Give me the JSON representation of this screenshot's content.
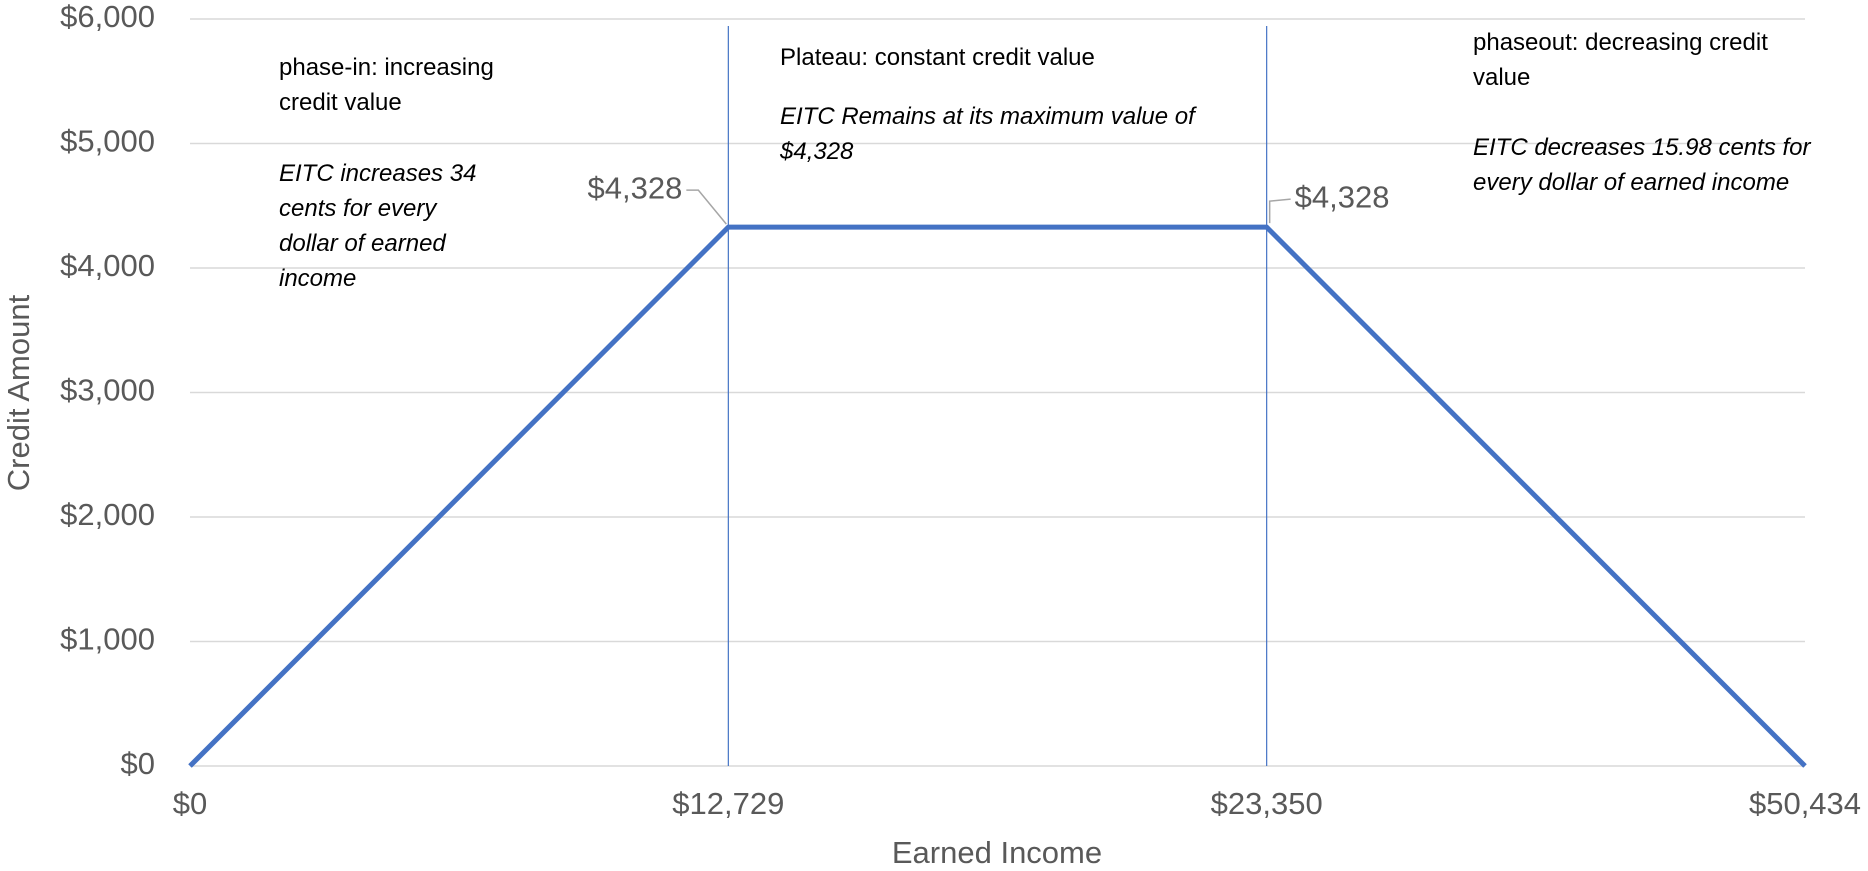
{
  "chart_data": {
    "type": "line",
    "x_label": "Earned Income",
    "y_label": "Credit Amount",
    "categories": [
      "$0",
      "$12,729",
      "$23,350",
      "$50,434"
    ],
    "series": [
      {
        "color": "#4472c4",
        "values": [
          0,
          4328,
          4328,
          0
        ],
        "value_labels": [
          null,
          "$4,328",
          "$4,328",
          null
        ]
      }
    ],
    "ylim": [
      0,
      6000
    ],
    "yticks": [
      {
        "value": 0,
        "label": "$0"
      },
      {
        "value": 1000,
        "label": "$1,000"
      },
      {
        "value": 2000,
        "label": "$2,000"
      },
      {
        "value": 3000,
        "label": "$3,000"
      },
      {
        "value": 4000,
        "label": "$4,000"
      },
      {
        "value": 5000,
        "label": "$5,000"
      },
      {
        "value": 6000,
        "label": "$6,000"
      }
    ],
    "grid": true,
    "annotations": [
      {
        "title": "phase-in: increasing credit value",
        "note": "EITC increases 34 cents for every dollar of earned income"
      },
      {
        "title": "Plateau: constant credit value",
        "note": "EITC Remains at its maximum value of $4,328"
      },
      {
        "title": "phaseout: decreasing credit value",
        "note": "EITC decreases 15.98 cents for every dollar of earned income"
      }
    ]
  }
}
